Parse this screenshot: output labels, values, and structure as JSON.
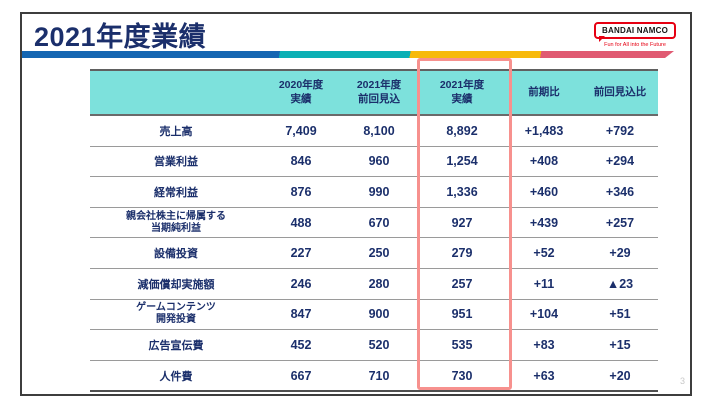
{
  "slide": {
    "title": "2021年度業績",
    "page_number": "3"
  },
  "logo": {
    "name": "BANDAI NAMCO",
    "tagline": "Fun for All into the Future"
  },
  "theme": {
    "navy": "#1B2F6B",
    "header_bg": "#7DE1DC",
    "highlight_border": "#F7918E",
    "stripe_blue": "#1566B2",
    "stripe_teal": "#0BB0B5",
    "stripe_yellow": "#F7BA0B",
    "stripe_pink": "#E05A72",
    "logo_red": "#E60012"
  },
  "table": {
    "columns": {
      "label": "",
      "fy2020": "2020年度\n実績",
      "fy2021_forecast": "2021年度\n前回見込",
      "fy2021_actual": "2021年度\n実績",
      "yoy": "前期比",
      "vs_forecast": "前回見込比"
    },
    "rows": [
      {
        "label": "売上高",
        "fy2020": "7,409",
        "fy2021_forecast": "8,100",
        "fy2021_actual": "8,892",
        "yoy": "+1,483",
        "vs_forecast": "+792"
      },
      {
        "label": "営業利益",
        "fy2020": "846",
        "fy2021_forecast": "960",
        "fy2021_actual": "1,254",
        "yoy": "+408",
        "vs_forecast": "+294"
      },
      {
        "label": "経常利益",
        "fy2020": "876",
        "fy2021_forecast": "990",
        "fy2021_actual": "1,336",
        "yoy": "+460",
        "vs_forecast": "+346"
      },
      {
        "label": "親会社株主に帰属する\n当期純利益",
        "fy2020": "488",
        "fy2021_forecast": "670",
        "fy2021_actual": "927",
        "yoy": "+439",
        "vs_forecast": "+257"
      },
      {
        "label": "設備投資",
        "fy2020": "227",
        "fy2021_forecast": "250",
        "fy2021_actual": "279",
        "yoy": "+52",
        "vs_forecast": "+29"
      },
      {
        "label": "減価償却実施額",
        "fy2020": "246",
        "fy2021_forecast": "280",
        "fy2021_actual": "257",
        "yoy": "+11",
        "vs_forecast": "▲23"
      },
      {
        "label": "ゲームコンテンツ\n開発投資",
        "fy2020": "847",
        "fy2021_forecast": "900",
        "fy2021_actual": "951",
        "yoy": "+104",
        "vs_forecast": "+51"
      },
      {
        "label": "広告宣伝費",
        "fy2020": "452",
        "fy2021_forecast": "520",
        "fy2021_actual": "535",
        "yoy": "+83",
        "vs_forecast": "+15"
      },
      {
        "label": "人件費",
        "fy2020": "667",
        "fy2021_forecast": "710",
        "fy2021_actual": "730",
        "yoy": "+63",
        "vs_forecast": "+20"
      }
    ]
  }
}
